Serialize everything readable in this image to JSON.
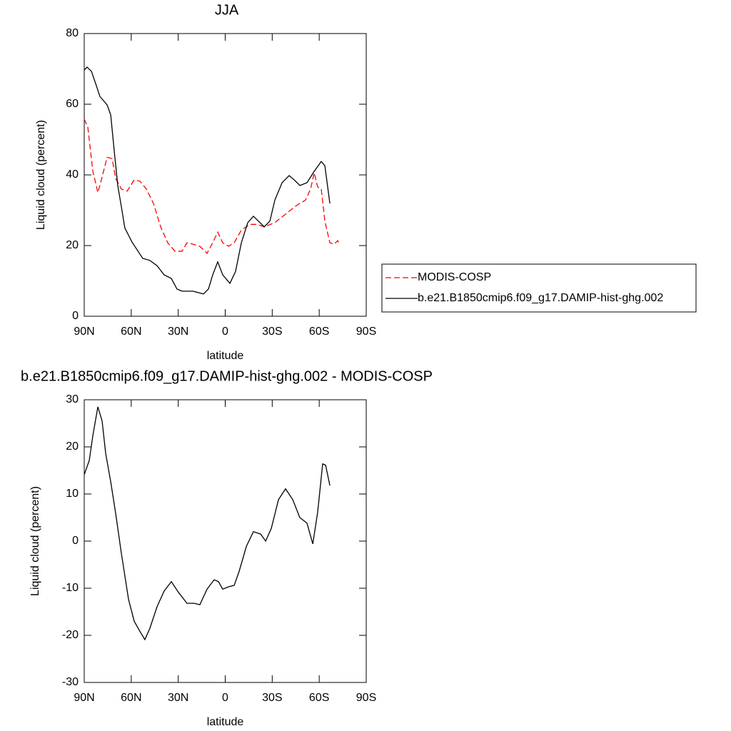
{
  "chart_data": [
    {
      "type": "line",
      "title": "JJA",
      "xlabel": "latitude",
      "ylabel": "Liquid cloud (percent)",
      "xlim": [
        90,
        -90
      ],
      "xticks": [
        {
          "value": 90,
          "label": "90N"
        },
        {
          "value": 60,
          "label": "60N"
        },
        {
          "value": 30,
          "label": "30N"
        },
        0,
        {
          "value": -30,
          "label": "30S"
        },
        {
          "value": -60,
          "label": "60S"
        },
        {
          "value": -90,
          "label": "90S"
        }
      ],
      "ylim": [
        0,
        80
      ],
      "yticks": [
        0,
        20,
        40,
        60,
        80
      ],
      "legend": "right",
      "series": [
        {
          "name": "MODIS-COSP",
          "color": "#ff0000",
          "dashed": true,
          "x": [
            90,
            87.7,
            84.5,
            81.3,
            78.6,
            75.4,
            72.2,
            69.9,
            66.3,
            62.6,
            58.1,
            54.4,
            50.3,
            45.8,
            41.2,
            36.7,
            32.1,
            27.6,
            24.4,
            20.7,
            16.2,
            11.6,
            8,
            4.8,
            1.6,
            -2.1,
            -5.7,
            -10.3,
            -15.7,
            -20.3,
            -24.9,
            -31.7,
            -38.5,
            -45.4,
            -51.3,
            -54.5,
            -56.8,
            -59,
            -61.3,
            -63.6,
            -66.8,
            -69.5,
            -71.8,
            -73.2
          ],
          "values": [
            55.8,
            53.5,
            41,
            35,
            39.4,
            45,
            44.6,
            39,
            36,
            35.4,
            38.6,
            38.2,
            36,
            31.9,
            25.3,
            20.8,
            18.4,
            18.4,
            20.8,
            20.4,
            19.8,
            17.8,
            20.8,
            23.8,
            20.8,
            19.8,
            20.8,
            24.4,
            26,
            26,
            25.3,
            26.5,
            28.9,
            31.3,
            32.9,
            36,
            40.6,
            36.6,
            36,
            26.9,
            20.8,
            20.4,
            21.4,
            20.2
          ]
        },
        {
          "name": "b.e21.B1850cmip6.f09_g17.DAMIP-hist-ghg.002",
          "color": "#000000",
          "dashed": false,
          "x": [
            90,
            88.2,
            85.4,
            82.3,
            80,
            75.4,
            73.1,
            70.9,
            68.6,
            66.3,
            64.1,
            59.5,
            52.7,
            48.1,
            43.5,
            39,
            34.4,
            30.8,
            27.6,
            20.7,
            13.9,
            10.7,
            8,
            4.8,
            1.6,
            -3,
            -6.6,
            -10.3,
            -14.4,
            -18,
            -21.2,
            -24.9,
            -28.5,
            -31.7,
            -36.3,
            -40.8,
            -44,
            -47.7,
            -52.2,
            -56.8,
            -61.3,
            -63.6,
            -66.8
          ],
          "values": [
            69.7,
            70.5,
            69.3,
            65.3,
            62.2,
            59.8,
            57,
            47,
            37,
            31,
            25,
            21,
            16.4,
            15.8,
            14.3,
            11.7,
            10.7,
            7.7,
            7.1,
            7.1,
            6.3,
            7.7,
            11.7,
            15.4,
            11.7,
            9.3,
            12.7,
            20.8,
            26.5,
            28.3,
            26.9,
            25.3,
            26.9,
            32.9,
            37.8,
            39.8,
            38.6,
            37,
            37.8,
            41,
            43.8,
            42.6,
            31.9
          ]
        }
      ]
    },
    {
      "type": "line",
      "title": "b.e21.B1850cmip6.f09_g17.DAMIP-hist-ghg.002 - MODIS-COSP",
      "xlabel": "latitude",
      "ylabel": "Liquid cloud (percent)",
      "xlim": [
        90,
        -90
      ],
      "xticks": [
        {
          "value": 90,
          "label": "90N"
        },
        {
          "value": 60,
          "label": "60N"
        },
        {
          "value": 30,
          "label": "30N"
        },
        0,
        {
          "value": -30,
          "label": "30S"
        },
        {
          "value": -60,
          "label": "60S"
        },
        {
          "value": -90,
          "label": "90S"
        }
      ],
      "ylim": [
        -30,
        30
      ],
      "yticks": [
        -30,
        -20,
        -10,
        0,
        10,
        20,
        30
      ],
      "series": [
        {
          "color": "#000000",
          "dashed": false,
          "x": [
            90,
            86.8,
            84.5,
            81.3,
            78.6,
            76.3,
            73.1,
            69.9,
            66.3,
            61.7,
            58.1,
            54.4,
            51.3,
            48.1,
            43.5,
            39,
            34.4,
            29.8,
            24.4,
            19.8,
            16.2,
            11.6,
            7.1,
            4.3,
            1.6,
            -2.1,
            -5.7,
            -8.9,
            -13.5,
            -18,
            -22.6,
            -25.8,
            -29.4,
            -34,
            -38.5,
            -43.1,
            -47.6,
            -52.2,
            -55.9,
            -59,
            -62.2,
            -64.1,
            -66.8
          ],
          "values": [
            14.1,
            17.1,
            22.4,
            28.5,
            25.5,
            18.6,
            12.6,
            5.8,
            -2.6,
            -12.4,
            -17,
            -19.2,
            -20.9,
            -18.5,
            -13.9,
            -10.6,
            -8.6,
            -10.9,
            -13.2,
            -13.2,
            -13.5,
            -10.2,
            -8.2,
            -8.6,
            -10.2,
            -9.7,
            -9.4,
            -6.4,
            -1.1,
            2,
            1.5,
            0,
            2.7,
            8.8,
            11.1,
            8.8,
            5,
            3.8,
            -0.6,
            6.1,
            16.4,
            16.1,
            11.8
          ]
        }
      ]
    }
  ]
}
